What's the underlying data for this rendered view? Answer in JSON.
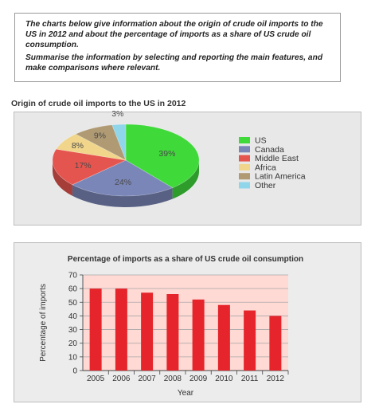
{
  "task": {
    "paragraph1": "The charts below give information about the origin of crude oil imports to the US in 2012 and about the percentage of imports as a share of US crude oil consumption.",
    "paragraph2": "Summarise the information by selecting and reporting the main features, and make comparisons where relevant."
  },
  "chart_data": [
    {
      "type": "pie",
      "title": "Origin of crude oil imports to the US in 2012",
      "slices": [
        {
          "label": "US",
          "value": 39,
          "display": "39%",
          "color": "#3fd93a"
        },
        {
          "label": "Canada",
          "value": 24,
          "display": "24%",
          "color": "#7a86b8"
        },
        {
          "label": "Middle East",
          "value": 17,
          "display": "17%",
          "color": "#e5554f"
        },
        {
          "label": "Africa",
          "value": 8,
          "display": "8%",
          "color": "#f0d58a"
        },
        {
          "label": "Latin America",
          "value": 9,
          "display": "9%",
          "color": "#b09a73"
        },
        {
          "label": "Other",
          "value": 3,
          "display": "3%",
          "color": "#8fd6ea"
        }
      ],
      "legend_placement": "right"
    },
    {
      "type": "bar",
      "title": "Percentage of imports as a share of US crude oil consumption",
      "categories": [
        "2005",
        "2006",
        "2007",
        "2008",
        "2009",
        "2010",
        "2011",
        "2012"
      ],
      "values": [
        60,
        60,
        57,
        56,
        52,
        48,
        44,
        40
      ],
      "xlabel": "Year",
      "ylabel": "Percentage of imports",
      "ylim": [
        0,
        70
      ],
      "yticks": [
        "0",
        "10",
        "20",
        "30",
        "40",
        "50",
        "60",
        "70"
      ],
      "grid": true,
      "bar_color": "#e5252b",
      "plot_background": "#ffd9d4"
    }
  ]
}
